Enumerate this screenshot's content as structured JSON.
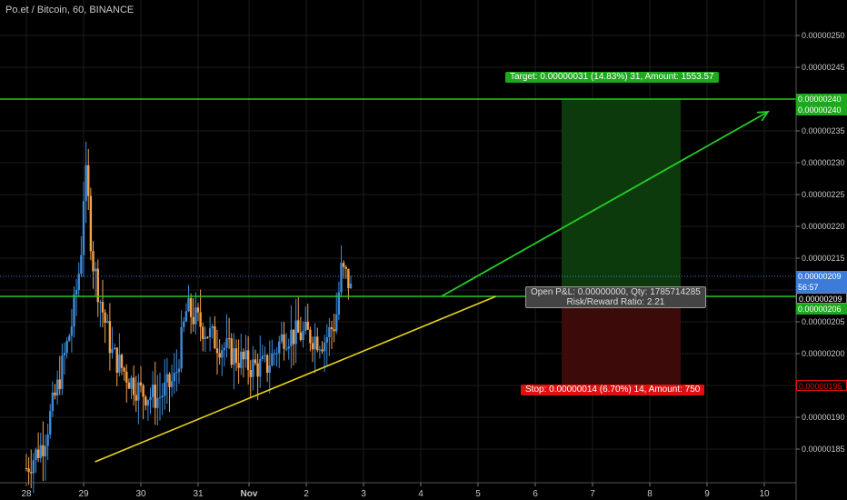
{
  "symbol_title": "Po.et / Bitcoin, 60, BINANCE",
  "labels": {
    "target": "Target: 0.00000031 (14.83%) 31, Amount: 1553.57",
    "stop": "Stop: 0.00000014 (6.70%) 14, Amount: 750",
    "pnl_line1": "Open P&L: 0.00000000, Qty: 1785714285",
    "pnl_line2": "Risk/Reward Ratio: 2.21"
  },
  "price_tags": {
    "target_top": "0.00000240",
    "target_bottom": "0.00000240",
    "last_price": "0.00000209",
    "countdown": "56:57",
    "entry": "0.00000209",
    "entry_bottom": "0.00000206",
    "stop": "0.00000195"
  },
  "colors": {
    "background": "#000000",
    "grid": "#1c1c1c",
    "up_candle": "#3d8bd9",
    "down_candle": "#f5a04a",
    "level_line": "#22cc22",
    "trend_line": "#e8d21e",
    "arrow": "#22cc22",
    "target_zone": "#0d3a0d",
    "stop_zone": "#3d0a0a",
    "target_tag": "#1ea81e",
    "stop_tag": "#e01010",
    "last_price_tag": "#3d7bd9"
  },
  "chart_data": {
    "type": "candlestick",
    "title": "Po.et / Bitcoin, 60, BINANCE",
    "x_ticks": [
      "28",
      "29",
      "30",
      "31",
      "Nov",
      "2",
      "3",
      "4",
      "5",
      "6",
      "7",
      "8",
      "9",
      "10"
    ],
    "y_ticks": [
      "0.00000185",
      "0.00000190",
      "0.00000195",
      "0.00000200",
      "0.00000205",
      "0.00000210",
      "0.00000215",
      "0.00000220",
      "0.00000225",
      "0.00000230",
      "0.00000235",
      "0.00000240",
      "0.00000245",
      "0.00000250"
    ],
    "ylim": [
      1.8e-06,
      2.52e-06
    ],
    "y_tick_values": [
      1.85e-06,
      1.9e-06,
      1.95e-06,
      2e-06,
      2.05e-06,
      2.1e-06,
      2.15e-06,
      2.2e-06,
      2.25e-06,
      2.3e-06,
      2.35e-06,
      2.4e-06,
      2.45e-06,
      2.5e-06
    ],
    "approx_price_path": [
      [
        0,
        1.82e-06
      ],
      [
        0.3,
        1.86e-06
      ],
      [
        0.55,
        1.95e-06
      ],
      [
        0.8,
        2.05e-06
      ],
      [
        0.95,
        2.15e-06
      ],
      [
        1.0,
        2.25e-06
      ],
      [
        1.05,
        2.28e-06
      ],
      [
        1.15,
        2.15e-06
      ],
      [
        1.3,
        2.08e-06
      ],
      [
        1.5,
        2e-06
      ],
      [
        1.8,
        1.96e-06
      ],
      [
        2.0,
        1.94e-06
      ],
      [
        2.3,
        1.93e-06
      ],
      [
        2.6,
        1.96e-06
      ],
      [
        2.8,
        2.07e-06
      ],
      [
        3.0,
        2.05e-06
      ],
      [
        3.3,
        2.02e-06
      ],
      [
        3.6,
        2e-06
      ],
      [
        3.9,
        1.98e-06
      ],
      [
        4.2,
        1.98e-06
      ],
      [
        4.5,
        2.03e-06
      ],
      [
        4.9,
        2.03e-06
      ],
      [
        5.2,
        2.02e-06
      ],
      [
        5.4,
        2.05e-06
      ],
      [
        5.5,
        2.13e-06
      ],
      [
        5.6,
        2.12e-06
      ],
      [
        5.7,
        2.09e-06
      ]
    ],
    "horizontal_levels": [
      2.4e-06,
      2.09e-06
    ],
    "target_price": 2.4e-06,
    "entry_price": 2.09e-06,
    "stop_price": 1.95e-06,
    "grid": true
  }
}
